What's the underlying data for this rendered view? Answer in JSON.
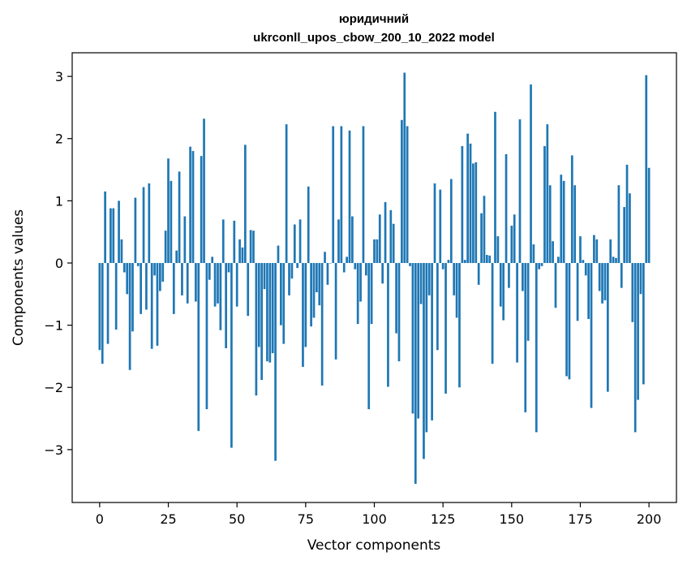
{
  "chart_data": {
    "type": "bar",
    "title": "юридичний",
    "subtitle": "ukrconll_upos_cbow_200_10_2022 model",
    "xlabel": "Vector components",
    "ylabel": "Components values",
    "xlim": [
      -10,
      210
    ],
    "ylim": [
      -3.85,
      3.38
    ],
    "xticks": [
      0,
      25,
      50,
      75,
      100,
      125,
      150,
      175,
      200
    ],
    "yticks": [
      -3,
      -2,
      -1,
      0,
      1,
      2,
      3
    ],
    "grid": false,
    "bar_color": "#1f77b4",
    "values": [
      -1.4,
      -1.62,
      1.15,
      -1.3,
      0.88,
      0.88,
      -1.07,
      1.0,
      0.38,
      -0.15,
      -0.5,
      -1.72,
      -1.1,
      1.05,
      -0.05,
      -0.82,
      1.22,
      -0.75,
      1.28,
      -1.38,
      -0.2,
      -1.33,
      -0.45,
      -0.3,
      0.52,
      1.68,
      1.32,
      -0.82,
      0.2,
      1.47,
      -0.52,
      0.75,
      -0.65,
      1.87,
      1.8,
      -0.62,
      -2.7,
      1.72,
      2.32,
      -2.35,
      -0.27,
      0.1,
      -0.7,
      -0.65,
      -1.08,
      0.7,
      -1.37,
      -0.15,
      -2.97,
      0.68,
      -0.7,
      0.38,
      0.25,
      1.9,
      -0.85,
      0.53,
      0.52,
      -2.13,
      -1.35,
      -1.88,
      -0.42,
      -1.58,
      -1.6,
      -1.45,
      -3.18,
      0.28,
      -1.0,
      -1.3,
      2.23,
      -0.52,
      -0.25,
      0.62,
      -0.08,
      0.7,
      -1.67,
      -1.35,
      1.23,
      -1.02,
      -0.88,
      -0.47,
      -0.68,
      -1.97,
      0.18,
      -0.35,
      0.0,
      2.2,
      -1.55,
      0.7,
      2.2,
      -0.15,
      0.1,
      2.13,
      0.75,
      -0.1,
      -0.98,
      -0.62,
      2.2,
      -0.2,
      -2.35,
      -0.98,
      0.38,
      0.38,
      0.78,
      -0.33,
      0.98,
      -1.99,
      0.85,
      0.63,
      -1.13,
      -1.58,
      2.3,
      3.06,
      2.2,
      -0.05,
      -2.42,
      -3.55,
      -2.5,
      -0.66,
      -3.15,
      -2.72,
      -0.52,
      -2.53,
      1.28,
      -1.4,
      1.18,
      -0.1,
      -2.1,
      0.05,
      1.35,
      -0.52,
      -0.88,
      -2.0,
      1.88,
      0.05,
      2.08,
      1.92,
      1.6,
      1.62,
      -0.35,
      0.8,
      1.08,
      0.13,
      0.12,
      -1.62,
      2.43,
      0.43,
      -0.7,
      -0.92,
      1.75,
      -0.4,
      0.6,
      0.78,
      -1.6,
      2.31,
      -0.45,
      -2.4,
      -1.25,
      2.87,
      0.3,
      -2.72,
      -0.1,
      -0.05,
      1.88,
      2.23,
      1.25,
      0.35,
      -0.72,
      0.1,
      1.42,
      1.32,
      -1.82,
      -1.87,
      1.73,
      1.25,
      -0.93,
      0.43,
      0.05,
      -0.2,
      -0.9,
      -2.33,
      0.45,
      0.38,
      -0.45,
      -0.65,
      -0.6,
      -2.07,
      0.38,
      0.1,
      0.08,
      1.25,
      -0.4,
      0.9,
      1.58,
      1.12,
      -0.95,
      -2.72,
      -2.2,
      -0.5,
      -1.95,
      3.02,
      1.53
    ]
  }
}
